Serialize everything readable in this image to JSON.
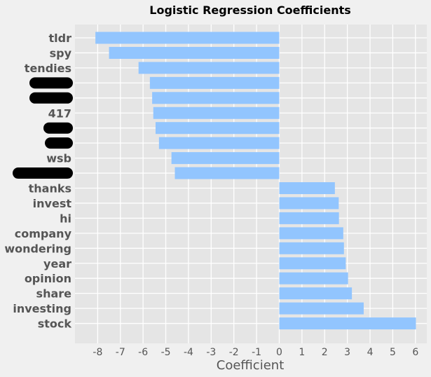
{
  "chart_data": {
    "type": "bar",
    "orientation": "horizontal",
    "title": "Logistic Regression Coefficients",
    "xlabel": "Coefficient",
    "ylabel": "",
    "xlim": [
      -9,
      6.5
    ],
    "xticks": [
      -8,
      -7,
      -6,
      -5,
      -4,
      -3,
      -2,
      -1,
      0,
      1,
      2,
      3,
      4,
      5,
      6
    ],
    "bar_color": "#92c5fe",
    "plot_background": "#e5e5e5",
    "grid": true,
    "categories": [
      "tldr",
      "spy",
      "tendies",
      "",
      "",
      "417",
      "",
      "",
      "wsb",
      "",
      "thanks",
      "invest",
      "hi",
      "company",
      "wondering",
      "year",
      "opinion",
      "share",
      "investing",
      "stock"
    ],
    "redacted": [
      false,
      false,
      false,
      true,
      true,
      false,
      true,
      true,
      false,
      true,
      false,
      false,
      false,
      false,
      false,
      false,
      false,
      false,
      false,
      false
    ],
    "values": [
      -8.1,
      -7.5,
      -6.2,
      -5.7,
      -5.6,
      -5.55,
      -5.45,
      -5.3,
      -4.75,
      -4.6,
      2.45,
      2.62,
      2.63,
      2.82,
      2.85,
      2.93,
      3.03,
      3.2,
      3.72,
      6.02
    ]
  }
}
